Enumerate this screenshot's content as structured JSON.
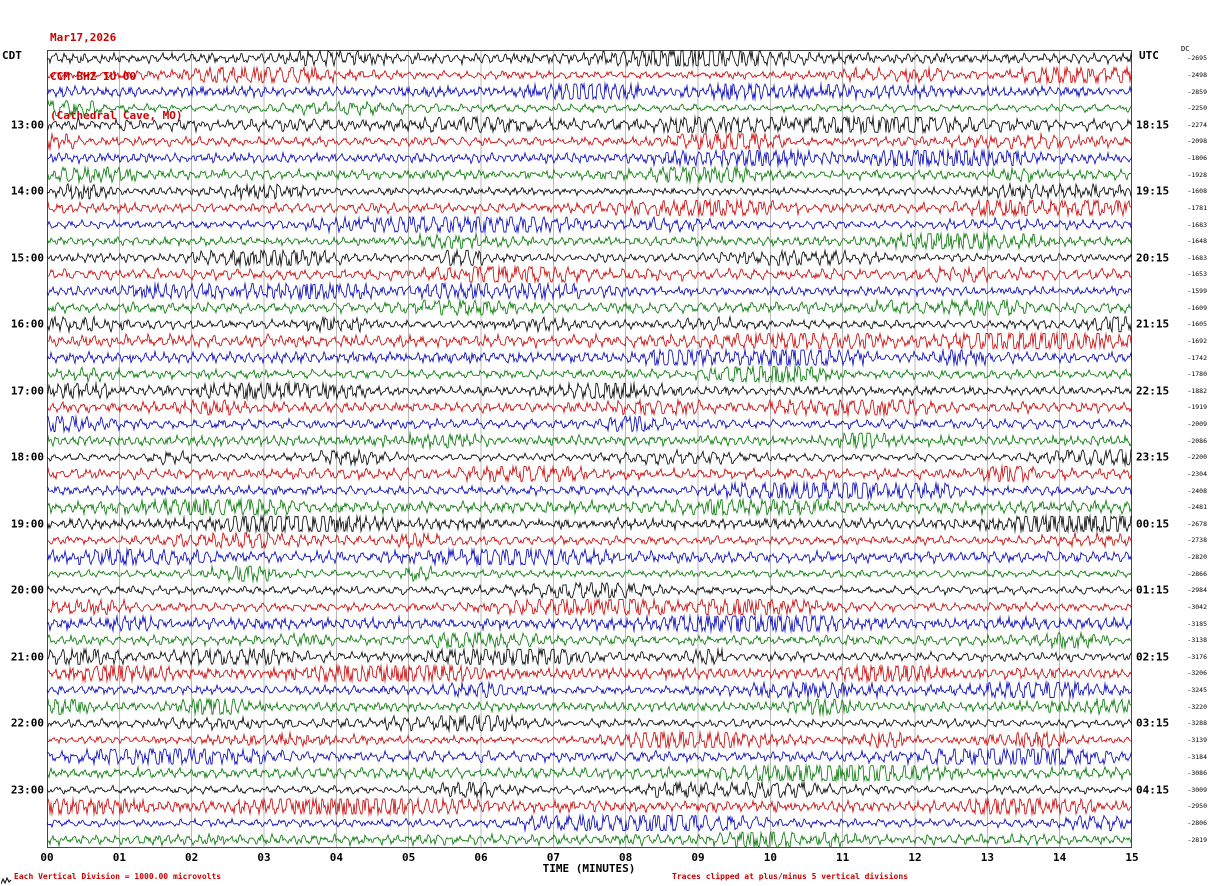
{
  "header": {
    "date_line": "Mar17,2026",
    "station_line": "CCM BHZ IU 00",
    "location_line": "(Cathedral Cave, MO)"
  },
  "footer": {
    "scale_note": "Each Vertical Division = 1000.00 microvolts",
    "clip_note": "Traces clipped at plus/minus 5 vertical divisions"
  },
  "chart_data": {
    "type": "line",
    "title": "Helicorder seismogram, station CCM BHZ IU 00 (Cathedral Cave, MO), Mar17,2026",
    "xlabel": "TIME (MINUTES)",
    "x_ticks": [
      "00",
      "01",
      "02",
      "03",
      "04",
      "05",
      "06",
      "07",
      "08",
      "09",
      "10",
      "11",
      "12",
      "13",
      "14",
      "15"
    ],
    "x_range_minutes": [
      0,
      15
    ],
    "num_rows": 48,
    "minutes_per_row": 15,
    "row_color_cycle": [
      "#000000",
      "#cc0000",
      "#0000bb",
      "#007700"
    ],
    "left_axis_label": "CDT",
    "right_axis_label": "UTC",
    "dc_column_label": "DC",
    "left_hour_labels": [
      {
        "row": 4,
        "text": "13:00"
      },
      {
        "row": 8,
        "text": "14:00"
      },
      {
        "row": 12,
        "text": "15:00"
      },
      {
        "row": 16,
        "text": "16:00"
      },
      {
        "row": 20,
        "text": "17:00"
      },
      {
        "row": 24,
        "text": "18:00"
      },
      {
        "row": 28,
        "text": "19:00"
      },
      {
        "row": 32,
        "text": "20:00"
      },
      {
        "row": 36,
        "text": "21:00"
      },
      {
        "row": 40,
        "text": "22:00"
      },
      {
        "row": 44,
        "text": "23:00"
      }
    ],
    "right_hour_labels": [
      {
        "row": 4,
        "text": "18:15"
      },
      {
        "row": 8,
        "text": "19:15"
      },
      {
        "row": 12,
        "text": "20:15"
      },
      {
        "row": 16,
        "text": "21:15"
      },
      {
        "row": 20,
        "text": "22:15"
      },
      {
        "row": 24,
        "text": "23:15"
      },
      {
        "row": 28,
        "text": "00:15"
      },
      {
        "row": 32,
        "text": "01:15"
      },
      {
        "row": 36,
        "text": "02:15"
      },
      {
        "row": 40,
        "text": "03:15"
      },
      {
        "row": 44,
        "text": "04:15"
      }
    ],
    "dc_offsets": [
      -2695,
      -2498,
      -2859,
      -2250,
      -2274,
      -2098,
      -1806,
      -1928,
      -1608,
      -1781,
      -1683,
      -1648,
      -1683,
      -1653,
      -1599,
      -1609,
      -1605,
      -1692,
      -1742,
      -1780,
      -1882,
      -1919,
      -2009,
      -2086,
      -2200,
      -2304,
      -2408,
      -2481,
      -2678,
      -2738,
      -2820,
      -2866,
      -2984,
      -3042,
      -3185,
      -3138,
      -3176,
      -3206,
      -3245,
      -3220,
      -3288,
      -3139,
      -3184,
      -3086,
      -3009,
      -2950,
      -2806,
      -2819
    ],
    "clip_divisions": 5,
    "grid": "vertical lines at each minute"
  }
}
